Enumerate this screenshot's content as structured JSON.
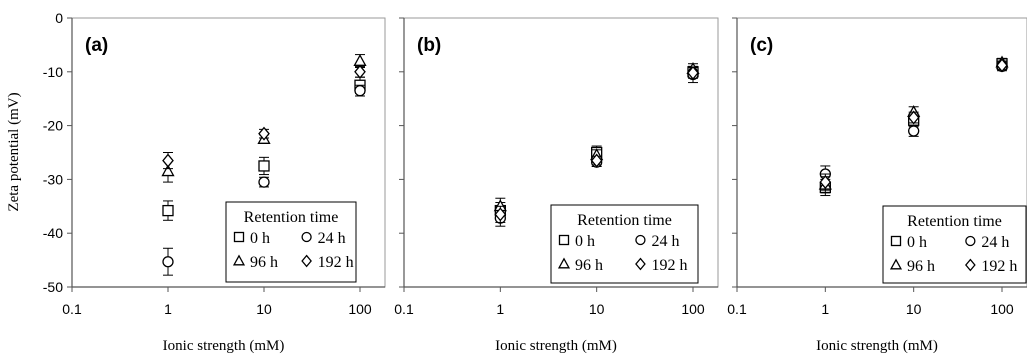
{
  "figure": {
    "ylabel": "Zeta potential (mV)",
    "y_ticks": [
      "0",
      "-10",
      "-20",
      "-30",
      "-40",
      "-50"
    ],
    "x_ticks": [
      "0.1",
      "1",
      "10",
      "100"
    ]
  },
  "chart_data": [
    {
      "type": "scatter",
      "panel_label": "(a)",
      "xlabel": "Ionic strength (mM)",
      "ylabel": "Zeta potential (mV)",
      "x_scale": "log",
      "xlim": [
        0.1,
        100
      ],
      "ylim": [
        -50,
        0
      ],
      "grid": false,
      "legend": {
        "title": "Retention time",
        "placement": "bottom-right",
        "entries": [
          {
            "marker": "square",
            "label": "0 h"
          },
          {
            "marker": "circle",
            "label": "24 h"
          },
          {
            "marker": "triangle",
            "label": "96 h"
          },
          {
            "marker": "diamond",
            "label": "192 h"
          }
        ]
      },
      "series": [
        {
          "name": "0 h",
          "marker": "square",
          "x": [
            1,
            10,
            100
          ],
          "y": [
            -35.8,
            -27.5,
            -12.5
          ],
          "err": [
            1.8,
            1.6,
            1.5
          ]
        },
        {
          "name": "24 h",
          "marker": "circle",
          "x": [
            1,
            10,
            100
          ],
          "y": [
            -45.3,
            -30.5,
            -13.5
          ],
          "err": [
            2.5,
            0.9,
            1.0
          ]
        },
        {
          "name": "96 h",
          "marker": "triangle",
          "x": [
            1,
            10,
            100
          ],
          "y": [
            -28.5,
            -22.5,
            -8.0
          ],
          "err": [
            2.0,
            0.8,
            1.2
          ]
        },
        {
          "name": "192 h",
          "marker": "diamond",
          "x": [
            1,
            10,
            100
          ],
          "y": [
            -26.5,
            -21.5,
            -10.0
          ],
          "err": [
            1.5,
            0.8,
            1.0
          ]
        }
      ]
    },
    {
      "type": "scatter",
      "panel_label": "(b)",
      "xlabel": "Ionic strength (mM)",
      "x_scale": "log",
      "xlim": [
        0.1,
        100
      ],
      "ylim": [
        -50,
        0
      ],
      "grid": false,
      "legend": {
        "title": "Retention time",
        "placement": "bottom-right",
        "entries": [
          {
            "marker": "square",
            "label": "0 h"
          },
          {
            "marker": "circle",
            "label": "24 h"
          },
          {
            "marker": "triangle",
            "label": "96 h"
          },
          {
            "marker": "diamond",
            "label": "192 h"
          }
        ]
      },
      "series": [
        {
          "name": "0 h",
          "marker": "square",
          "x": [
            1,
            10,
            100
          ],
          "y": [
            -35.8,
            -25.0,
            -10.0
          ],
          "err": [
            1.5,
            1.2,
            1.0
          ]
        },
        {
          "name": "24 h",
          "marker": "circle",
          "x": [
            1,
            10,
            100
          ],
          "y": [
            -37.2,
            -26.8,
            -10.5
          ],
          "err": [
            1.5,
            0.8,
            1.5
          ]
        },
        {
          "name": "96 h",
          "marker": "triangle",
          "x": [
            1,
            10,
            100
          ],
          "y": [
            -35.0,
            -25.5,
            -9.5
          ],
          "err": [
            1.5,
            1.0,
            1.0
          ]
        },
        {
          "name": "192 h",
          "marker": "diamond",
          "x": [
            1,
            10,
            100
          ],
          "y": [
            -36.5,
            -26.5,
            -10.2
          ],
          "err": [
            1.5,
            0.8,
            1.0
          ]
        }
      ]
    },
    {
      "type": "scatter",
      "panel_label": "(c)",
      "xlabel": "Ionic strength (mM)",
      "x_scale": "log",
      "xlim": [
        0.1,
        100
      ],
      "ylim": [
        -50,
        0
      ],
      "grid": false,
      "legend": {
        "title": "Retention time",
        "placement": "bottom-right",
        "entries": [
          {
            "marker": "square",
            "label": "0 h"
          },
          {
            "marker": "circle",
            "label": "24 h"
          },
          {
            "marker": "triangle",
            "label": "96 h"
          },
          {
            "marker": "diamond",
            "label": "192 h"
          }
        ]
      },
      "series": [
        {
          "name": "0 h",
          "marker": "square",
          "x": [
            1,
            10,
            100
          ],
          "y": [
            -31.5,
            -19.0,
            -8.5
          ],
          "err": [
            1.5,
            1.2,
            0.8
          ]
        },
        {
          "name": "24 h",
          "marker": "circle",
          "x": [
            1,
            10,
            100
          ],
          "y": [
            -29.0,
            -21.0,
            -9.0
          ],
          "err": [
            1.5,
            1.0,
            0.8
          ]
        },
        {
          "name": "96 h",
          "marker": "triangle",
          "x": [
            1,
            10,
            100
          ],
          "y": [
            -31.0,
            -17.5,
            -8.3
          ],
          "err": [
            1.5,
            1.0,
            0.8
          ]
        },
        {
          "name": "192 h",
          "marker": "diamond",
          "x": [
            1,
            10,
            100
          ],
          "y": [
            -30.5,
            -18.5,
            -8.8
          ],
          "err": [
            1.5,
            1.0,
            0.8
          ]
        }
      ]
    }
  ]
}
